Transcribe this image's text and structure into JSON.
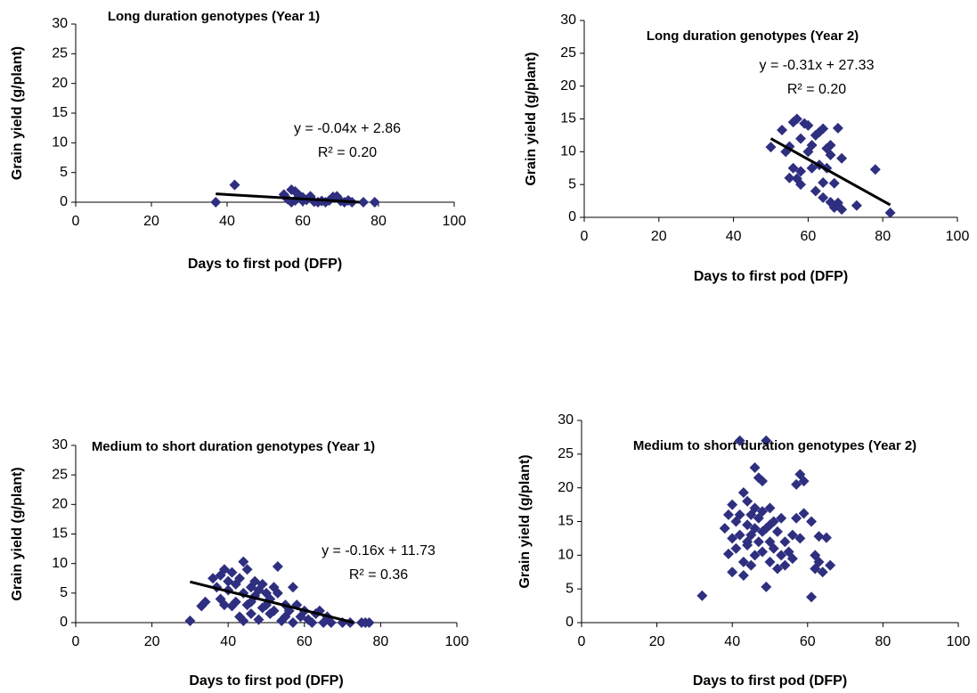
{
  "chart_data": [
    {
      "type": "scatter",
      "title": "Long duration genotypes (Year 1)",
      "xlabel": "Days to first pod (DFP)",
      "ylabel": "Grain yield (g/plant)",
      "color": "#2f2f80",
      "x": [
        37,
        42,
        55,
        56,
        57,
        58,
        58,
        59,
        60,
        61,
        62,
        63,
        64,
        65,
        66,
        67,
        68,
        69,
        70,
        71,
        72,
        73,
        76,
        79,
        60,
        57
      ],
      "values": [
        0,
        2.9,
        1.3,
        0.5,
        2.1,
        1.8,
        0.3,
        1.2,
        0.2,
        0.4,
        1.0,
        0.1,
        0,
        0.2,
        0,
        0.3,
        0.9,
        1.0,
        0.2,
        0,
        0.3,
        0,
        0,
        0,
        0.8,
        0
      ],
      "trendline": {
        "x": [
          37,
          75
        ],
        "values": [
          1.4,
          0
        ],
        "color": "#000000"
      },
      "equation": "y = -0.04x + 2.86",
      "r2": "R² = 0.20",
      "xlim": [
        0,
        100
      ],
      "xticks": [
        0,
        20,
        40,
        60,
        80,
        100
      ],
      "ylim": [
        0,
        30
      ],
      "yticks": [
        0,
        5,
        10,
        15,
        20,
        25,
        30
      ]
    },
    {
      "type": "scatter",
      "title": "Long duration genotypes (Year 2)",
      "xlabel": "Days to first pod (DFP)",
      "ylabel": "Grain yield (g/plant)",
      "color": "#2f2f80",
      "x": [
        50,
        53,
        54,
        55,
        56,
        55,
        56,
        57,
        57,
        58,
        58,
        58,
        59,
        60,
        60,
        61,
        61,
        62,
        62,
        63,
        63,
        64,
        64,
        65,
        65,
        66,
        66,
        67,
        67,
        68,
        68,
        69,
        69,
        73,
        78,
        82,
        64,
        66
      ],
      "values": [
        10.7,
        13.3,
        10,
        10.8,
        14.5,
        6,
        7.5,
        15,
        5.9,
        7,
        12,
        5,
        14.3,
        14,
        10,
        11,
        7.5,
        4,
        12.5,
        13,
        8,
        13.5,
        5.3,
        10.5,
        7.5,
        11,
        2.3,
        1.5,
        5.2,
        13.6,
        2.2,
        1.2,
        9,
        1.8,
        7.3,
        0.7,
        3,
        9.5
      ],
      "trendline": {
        "x": [
          50,
          82
        ],
        "values": [
          12,
          1.9
        ],
        "color": "#000000"
      },
      "equation": "y = -0.31x + 27.33",
      "r2": "R² = 0.20",
      "xlim": [
        0,
        100
      ],
      "xticks": [
        0,
        20,
        40,
        60,
        80,
        100
      ],
      "ylim": [
        0,
        30
      ],
      "yticks": [
        0,
        5,
        10,
        15,
        20,
        25,
        30
      ]
    },
    {
      "type": "scatter",
      "title": "Medium to short duration genotypes (Year 1)",
      "xlabel": "Days to first pod (DFP)",
      "ylabel": "Grain yield (g/plant)",
      "color": "#2f2f80",
      "x": [
        30,
        33,
        34,
        36,
        37,
        38,
        38,
        39,
        40,
        40,
        41,
        41,
        42,
        42,
        43,
        43,
        44,
        44,
        45,
        45,
        46,
        46,
        47,
        47,
        48,
        48,
        49,
        49,
        50,
        50,
        51,
        51,
        52,
        53,
        53,
        54,
        55,
        56,
        57,
        57,
        58,
        59,
        60,
        61,
        62,
        63,
        64,
        65,
        66,
        67,
        70,
        72,
        75,
        76,
        77,
        46,
        44,
        52,
        55,
        39
      ],
      "values": [
        0.3,
        2.8,
        3.5,
        7.5,
        6,
        8,
        4,
        9,
        5.5,
        7,
        2.8,
        8.5,
        3.5,
        6.5,
        1,
        7.5,
        10.3,
        5,
        3,
        9,
        6,
        1.5,
        4.5,
        7,
        5.5,
        0.5,
        2.5,
        6.5,
        3,
        5,
        1.5,
        4,
        2,
        9.5,
        5,
        0.3,
        3,
        2,
        6,
        0,
        3,
        1,
        2,
        0.5,
        0,
        1.5,
        2,
        0,
        1,
        0,
        0,
        0,
        0,
        0,
        0,
        3.5,
        0.3,
        6,
        1,
        3
      ],
      "trendline": {
        "x": [
          30,
          73
        ],
        "values": [
          6.9,
          0
        ],
        "color": "#000000"
      },
      "equation": "y = -0.16x + 11.73",
      "r2": "R² = 0.36",
      "xlim": [
        0,
        100
      ],
      "xticks": [
        0,
        20,
        40,
        60,
        80,
        100
      ],
      "ylim": [
        0,
        30
      ],
      "yticks": [
        0,
        5,
        10,
        15,
        20,
        25,
        30
      ]
    },
    {
      "type": "scatter",
      "title": "Medium to short duration genotypes (Year 2)",
      "xlabel": "Days to first pod (DFP)",
      "ylabel": "Grain yield (g/plant)",
      "color": "#2f2f80",
      "x": [
        32,
        38,
        39,
        39,
        40,
        40,
        40,
        41,
        41,
        42,
        42,
        42,
        43,
        43,
        43,
        44,
        44,
        44,
        45,
        45,
        45,
        46,
        46,
        46,
        46,
        47,
        47,
        47,
        48,
        48,
        48,
        48,
        49,
        49,
        49,
        50,
        50,
        50,
        51,
        51,
        52,
        52,
        53,
        53,
        54,
        54,
        55,
        56,
        56,
        57,
        57,
        58,
        58,
        59,
        59,
        61,
        61,
        62,
        62,
        63,
        63,
        64,
        65,
        66,
        44,
        50
      ],
      "values": [
        4,
        14,
        16,
        10.2,
        17.5,
        12.5,
        7.5,
        15,
        11,
        27,
        16,
        13,
        19.3,
        9,
        7,
        18,
        14.5,
        11.5,
        16,
        13,
        8.5,
        23,
        17,
        14,
        10,
        21.5,
        15.5,
        12,
        21,
        16.5,
        13.5,
        10.5,
        27,
        5.3,
        14,
        17,
        12,
        9,
        15,
        11,
        13.5,
        8,
        15.5,
        10,
        12,
        8.5,
        10.5,
        13,
        9.5,
        20.5,
        15.5,
        22,
        12.5,
        16.2,
        21,
        15,
        3.8,
        10,
        8,
        12.8,
        9,
        7.5,
        12.6,
        8.5,
        12,
        14.5
      ],
      "xlim": [
        0,
        100
      ],
      "xticks": [
        0,
        20,
        40,
        60,
        80,
        100
      ],
      "ylim": [
        0,
        30
      ],
      "yticks": [
        0,
        5,
        10,
        15,
        20,
        25,
        30
      ]
    }
  ]
}
